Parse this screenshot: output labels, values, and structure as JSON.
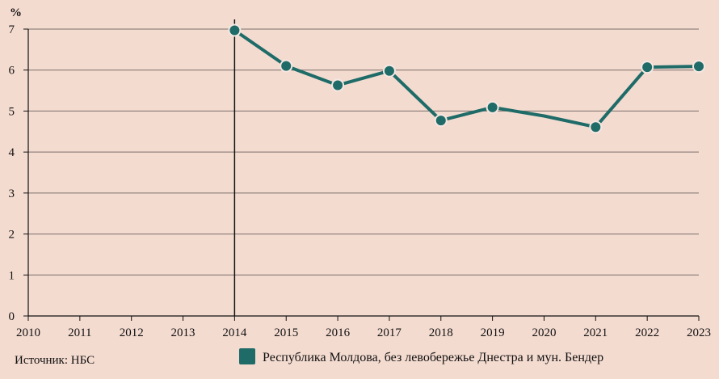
{
  "chart_data": {
    "type": "line",
    "title": "",
    "xlabel": "",
    "ylabel": "%",
    "x": [
      2010,
      2011,
      2012,
      2013,
      2014,
      2015,
      2016,
      2017,
      2018,
      2019,
      2020,
      2021,
      2022,
      2023
    ],
    "x_tick_labels": [
      "2010",
      "2011",
      "2012",
      "2013",
      "2014",
      "2015",
      "2016",
      "2017",
      "2018",
      "2019",
      "2020",
      "2021",
      "2022",
      "2023"
    ],
    "y_tick_labels": [
      "0",
      "1",
      "2",
      "3",
      "4",
      "5",
      "6",
      "7"
    ],
    "ylim": [
      0,
      7.4
    ],
    "xlim": [
      2010,
      2023
    ],
    "grid": "horizontal",
    "reference_line_x": 2014,
    "series": [
      {
        "name": "Республика Молдова, без левобережье Днестра и мун. Бендер",
        "color": "#1e6b68",
        "points": [
          {
            "x": 2014,
            "y": 6.97,
            "marker": true
          },
          {
            "x": 2015,
            "y": 6.1,
            "marker": true
          },
          {
            "x": 2016,
            "y": 5.63,
            "marker": true
          },
          {
            "x": 2017,
            "y": 5.98,
            "marker": true
          },
          {
            "x": 2018,
            "y": 4.77,
            "marker": true
          },
          {
            "x": 2019,
            "y": 5.09,
            "marker": true
          },
          {
            "x": 2020,
            "y": 4.88,
            "marker": false
          },
          {
            "x": 2021,
            "y": 4.61,
            "marker": true
          },
          {
            "x": 2022,
            "y": 6.07,
            "marker": true
          },
          {
            "x": 2023,
            "y": 6.09,
            "marker": true
          }
        ]
      }
    ],
    "legend": {
      "position": "bottom",
      "label": "Республика Молдова, без левобережье Днестра и мун. Бендер"
    },
    "source": "Источник: НБС",
    "colors": {
      "background": "#f4dbd0",
      "line": "#1e6b68",
      "grid": "#7a6f6a",
      "axis": "#111111"
    }
  }
}
